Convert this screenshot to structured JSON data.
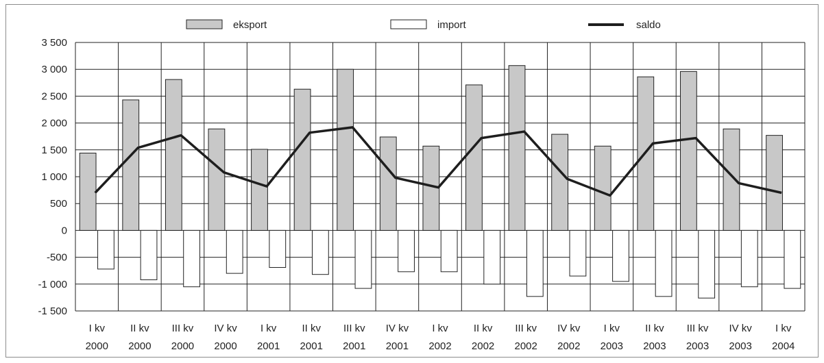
{
  "chart_data": {
    "type": "bar",
    "categories": [
      [
        "I kv",
        "2000"
      ],
      [
        "II kv",
        "2000"
      ],
      [
        "III kv",
        "2000"
      ],
      [
        "IV kv",
        "2000"
      ],
      [
        "I kv",
        "2001"
      ],
      [
        "II kv",
        "2001"
      ],
      [
        "III kv",
        "2001"
      ],
      [
        "IV kv",
        "2001"
      ],
      [
        "I kv",
        "2002"
      ],
      [
        "II kv",
        "2002"
      ],
      [
        "III kv",
        "2002"
      ],
      [
        "IV kv",
        "2002"
      ],
      [
        "I kv",
        "2003"
      ],
      [
        "II kv",
        "2003"
      ],
      [
        "III kv",
        "2003"
      ],
      [
        "IV kv",
        "2003"
      ],
      [
        "I kv",
        "2004"
      ]
    ],
    "series": [
      {
        "name": "eksport",
        "kind": "bar",
        "color": "#c8c8c8",
        "values": [
          1440,
          2430,
          2810,
          1890,
          1510,
          2630,
          3000,
          1740,
          1570,
          2710,
          3070,
          1790,
          1570,
          2860,
          2960,
          1890,
          1770
        ]
      },
      {
        "name": "import",
        "kind": "bar",
        "color": "#ffffff",
        "values": [
          -720,
          -920,
          -1050,
          -800,
          -690,
          -820,
          -1080,
          -770,
          -770,
          -1000,
          -1230,
          -850,
          -950,
          -1230,
          -1260,
          -1050,
          -1080
        ]
      },
      {
        "name": "saldo",
        "kind": "line",
        "color": "#1e1e1e",
        "values": [
          700,
          1540,
          1770,
          1080,
          820,
          1820,
          1920,
          980,
          800,
          1720,
          1840,
          960,
          650,
          1620,
          1720,
          880,
          700
        ]
      }
    ],
    "yticks": [
      3500,
      3000,
      2500,
      2000,
      1500,
      1000,
      500,
      0,
      -500,
      -1000,
      -1500
    ],
    "ytick_labels": [
      "3 500",
      "3 000",
      "2 500",
      "2 000",
      "1 500",
      "1 000",
      "500",
      "0",
      "-500",
      "-1 000",
      "-1 500"
    ],
    "ylim": [
      -1500,
      3500
    ],
    "grid": true,
    "legend_position": "top-center",
    "title": "",
    "xlabel": "",
    "ylabel": ""
  }
}
